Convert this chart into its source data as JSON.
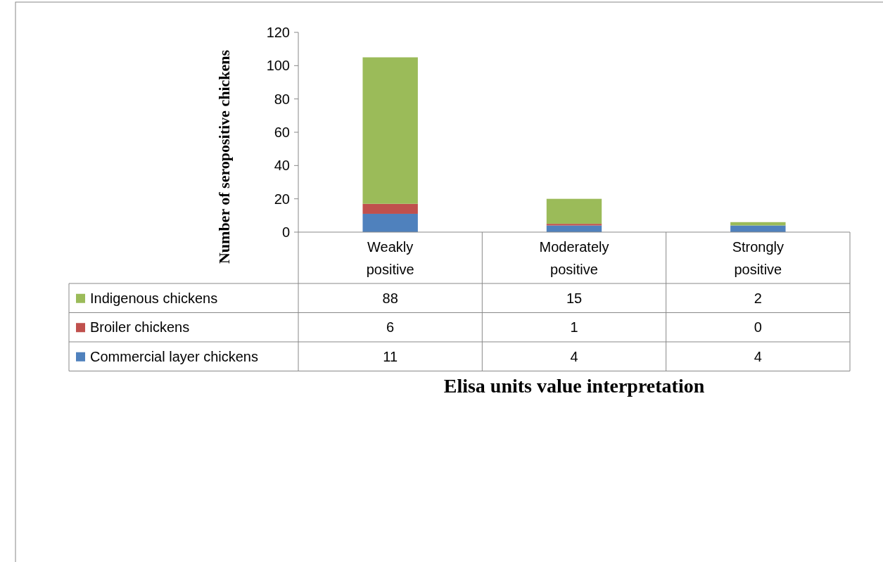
{
  "chart_data": {
    "type": "bar",
    "stacked": true,
    "xlabel": "Elisa units value interpretation",
    "ylabel": "Number of seropositive chickens",
    "categories": [
      "Weakly positive",
      "Moderately positive",
      "Strongly positive"
    ],
    "series": [
      {
        "name": "Commercial layer chickens",
        "color": "#4f81bd",
        "values": [
          11,
          4,
          4
        ]
      },
      {
        "name": "Broiler chickens",
        "color": "#c0504d",
        "values": [
          6,
          1,
          0
        ]
      },
      {
        "name": "Indigenous chickens",
        "color": "#9bbb59",
        "values": [
          88,
          15,
          2
        ]
      }
    ],
    "ylim": [
      0,
      120
    ],
    "yticks": [
      0,
      20,
      40,
      60,
      80,
      100,
      120
    ],
    "data_labels": true,
    "legend": "bottom left",
    "grid": false
  }
}
